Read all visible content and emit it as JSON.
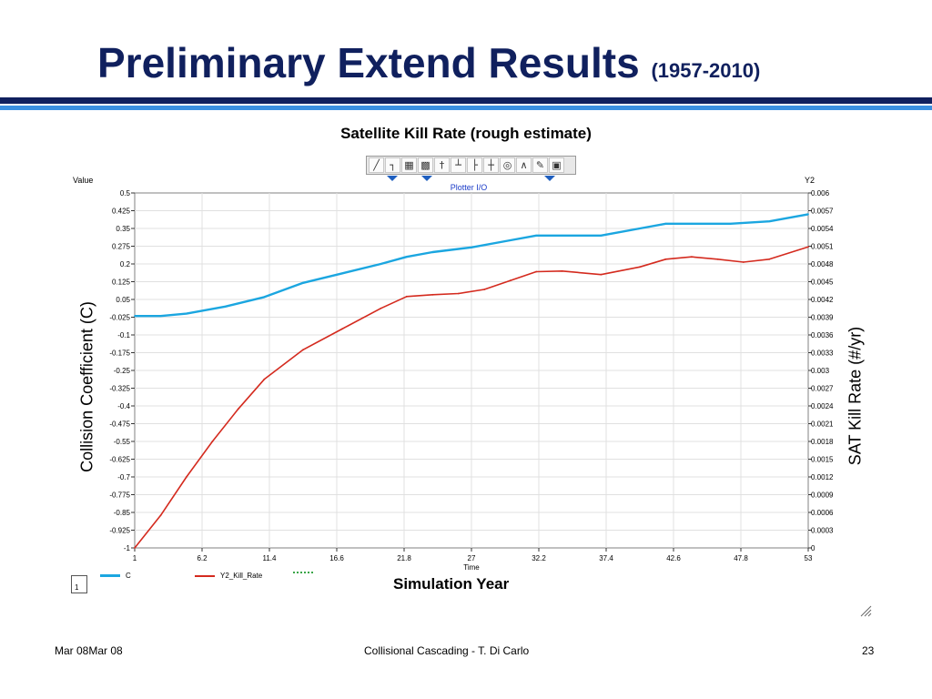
{
  "slide": {
    "title": "Preliminary Extend Results",
    "title_suffix": "(1957-2010)",
    "subtitle": "Satellite Kill Rate (rough estimate)",
    "footer_left": "Mar 08Mar 08",
    "footer_center": "Collisional Cascading - T. Di Carlo",
    "footer_right": "23",
    "colors": {
      "title": "#10205e",
      "rule_dark": "#10205e",
      "rule_light": "#3a8fe0"
    }
  },
  "toolbar": {
    "icons": [
      "plot-icon",
      "line-icon",
      "table-icon",
      "grid-icon",
      "pin-icon",
      "axis-x-icon",
      "axis-y-icon",
      "axis-xy-icon",
      "zoom-icon",
      "compass-icon",
      "pencil-icon",
      "lock-icon"
    ]
  },
  "plotter": {
    "window_title": "Plotter I/O",
    "y1_header": "Value",
    "y2_header": "Y2",
    "time_label": "Time",
    "left_axis_label": "Collision Coefficient (C)",
    "right_axis_label": "SAT Kill Rate (#/yr)",
    "x_axis_label": "Simulation Year",
    "legend_box_label": "1"
  },
  "chart_data": {
    "type": "line",
    "x_ticks": [
      "1",
      "6.2",
      "11.4",
      "16.6",
      "21.8",
      "27",
      "32.2",
      "37.4",
      "42.6",
      "47.8",
      "53"
    ],
    "y1_ticks": [
      "0.5",
      "0.425",
      "0.35",
      "0.275",
      "0.2",
      "0.125",
      "0.05",
      "-0.025",
      "-0.1",
      "-0.175",
      "-0.25",
      "-0.325",
      "-0.4",
      "-0.475",
      "-0.55",
      "-0.625",
      "-0.7",
      "-0.775",
      "-0.85",
      "-0.925",
      "-1"
    ],
    "y2_ticks": [
      "0.006",
      "0.0057",
      "0.0054",
      "0.0051",
      "0.0048",
      "0.0045",
      "0.0042",
      "0.0039",
      "0.0036",
      "0.0033",
      "0.003",
      "0.0027",
      "0.0024",
      "0.0021",
      "0.0018",
      "0.0015",
      "0.0012",
      "0.0009",
      "0.0006",
      "0.0003",
      "0"
    ],
    "xlim": [
      1,
      53
    ],
    "y1lim": [
      -1,
      0.5
    ],
    "y2lim": [
      0,
      0.006
    ],
    "grid": true,
    "legend_position": "bottom-left",
    "series": [
      {
        "name": "C",
        "axis": "y1",
        "color": "#1ba6e0",
        "x": [
          1,
          3,
          5,
          8,
          11,
          14,
          17,
          20,
          22,
          24,
          27,
          30,
          32,
          34,
          37,
          40,
          42,
          44,
          47,
          50,
          53
        ],
        "y": [
          -0.02,
          -0.02,
          -0.01,
          0.02,
          0.06,
          0.12,
          0.16,
          0.2,
          0.23,
          0.25,
          0.27,
          0.3,
          0.32,
          0.32,
          0.32,
          0.35,
          0.37,
          0.37,
          0.37,
          0.38,
          0.41
        ]
      },
      {
        "name": "Y2_Kill_Rate",
        "axis": "y2",
        "color": "#d42a1e",
        "x": [
          1,
          3,
          5,
          7,
          9,
          11,
          14,
          17,
          20,
          22,
          24,
          26,
          28,
          30,
          32,
          34,
          37,
          40,
          42,
          44,
          46,
          48,
          50,
          53
        ],
        "y": [
          0.0,
          0.00055,
          0.0012,
          0.0018,
          0.00235,
          0.00285,
          0.00335,
          0.0037,
          0.00405,
          0.00425,
          0.00428,
          0.0043,
          0.00437,
          0.00452,
          0.00467,
          0.00468,
          0.00462,
          0.00475,
          0.00488,
          0.00492,
          0.00488,
          0.00483,
          0.00488,
          0.00509
        ]
      }
    ],
    "legend_entries": [
      "C",
      "Y2_Kill_Rate",
      ""
    ]
  }
}
